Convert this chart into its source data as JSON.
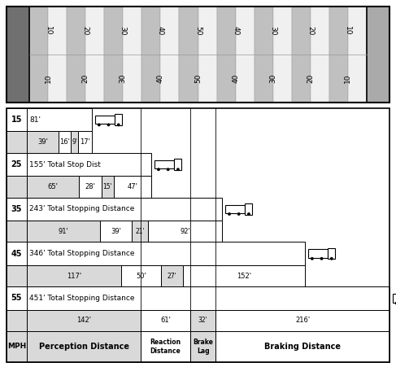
{
  "bg_color": "#ffffff",
  "ruler_stripe_labels": [
    "10",
    "20",
    "30",
    "40",
    "50",
    "40",
    "30",
    "20",
    "10"
  ],
  "rows": [
    {
      "mph": "15",
      "label": "81'",
      "perception": 39,
      "reaction": 16,
      "brake_lag": 9,
      "braking": 17,
      "perception_lbl": "39'",
      "reaction_lbl": "16'",
      "brake_lag_lbl": "9'",
      "braking_lbl": "17'"
    },
    {
      "mph": "25",
      "label": "155' Total Stop Dist",
      "perception": 65,
      "reaction": 28,
      "brake_lag": 15,
      "braking": 47,
      "perception_lbl": "65'",
      "reaction_lbl": "28'",
      "brake_lag_lbl": "15'",
      "braking_lbl": "47'"
    },
    {
      "mph": "35",
      "label": "243' Total Stopping Distance",
      "perception": 91,
      "reaction": 39,
      "brake_lag": 21,
      "braking": 92,
      "perception_lbl": "91'",
      "reaction_lbl": "39'",
      "brake_lag_lbl": "21'",
      "braking_lbl": "92'"
    },
    {
      "mph": "45",
      "label": "346' Total Stopping Distance",
      "perception": 117,
      "reaction": 50,
      "brake_lag": 27,
      "braking": 152,
      "perception_lbl": "117'",
      "reaction_lbl": "50'",
      "brake_lag_lbl": "27'",
      "braking_lbl": "152'"
    },
    {
      "mph": "55",
      "label": "451' Total Stopping Distance",
      "perception": 142,
      "reaction": 61,
      "brake_lag": 32,
      "braking": 216,
      "perception_lbl": "142'",
      "reaction_lbl": "61'",
      "brake_lag_lbl": "32'",
      "braking_lbl": "216'"
    }
  ],
  "color_perception": "#d9d9d9",
  "color_reaction": "#ffffff",
  "color_brake_lag": "#d9d9d9",
  "color_braking": "#ffffff",
  "color_mph_top": "#ffffff",
  "color_mph_bot": "#d9d9d9",
  "color_label_bar": "#ffffff",
  "color_dist_bar_bg": "#d9d9d9",
  "ruler_left_color": "#707070",
  "ruler_right_color": "#aaaaaa",
  "ruler_stripe_light": "#e8e8e8",
  "ruler_stripe_dark": "#c0c0c0",
  "border_color": "#000000"
}
